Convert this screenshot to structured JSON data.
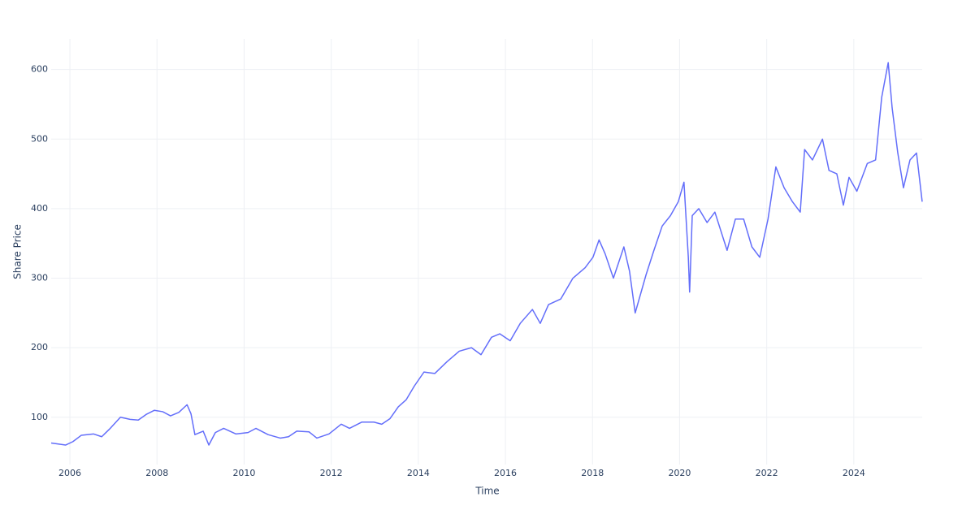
{
  "chart_data": {
    "type": "line",
    "xlabel": "Time",
    "ylabel": "Share Price",
    "xlim": [
      2005.57,
      2025.57
    ],
    "xticks": [
      2006,
      2008,
      2010,
      2012,
      2014,
      2016,
      2018,
      2020,
      2022,
      2024
    ],
    "ylim": [
      32,
      644
    ],
    "yticks": [
      100,
      200,
      300,
      400,
      500,
      600
    ],
    "grid": true,
    "x": [
      2005.57,
      2005.9,
      2006.07,
      2006.26,
      2006.54,
      2006.73,
      2006.91,
      2007.16,
      2007.38,
      2007.57,
      2007.75,
      2007.94,
      2008.13,
      2008.31,
      2008.5,
      2008.69,
      2008.78,
      2008.87,
      2009.06,
      2009.19,
      2009.34,
      2009.53,
      2009.81,
      2010.09,
      2010.27,
      2010.55,
      2010.83,
      2011.02,
      2011.21,
      2011.49,
      2011.67,
      2011.95,
      2012.23,
      2012.42,
      2012.7,
      2012.98,
      2013.16,
      2013.35,
      2013.54,
      2013.72,
      2013.91,
      2014.13,
      2014.38,
      2014.66,
      2014.94,
      2015.22,
      2015.44,
      2015.68,
      2015.87,
      2016.11,
      2016.34,
      2016.62,
      2016.8,
      2016.99,
      2017.27,
      2017.55,
      2017.83,
      2018.01,
      2018.15,
      2018.29,
      2018.48,
      2018.72,
      2018.85,
      2018.98,
      2019.23,
      2019.41,
      2019.6,
      2019.79,
      2019.97,
      2020.1,
      2020.2,
      2020.23,
      2020.29,
      2020.44,
      2020.63,
      2020.81,
      2021.09,
      2021.28,
      2021.47,
      2021.66,
      2021.84,
      2022.03,
      2022.21,
      2022.4,
      2022.59,
      2022.77,
      2022.87,
      2023.05,
      2023.28,
      2023.43,
      2023.61,
      2023.76,
      2023.89,
      2024.07,
      2024.31,
      2024.5,
      2024.64,
      2024.79,
      2024.88,
      2025.01,
      2025.14,
      2025.29,
      2025.44,
      2025.57
    ],
    "series": [
      {
        "color": "#636efa",
        "values": [
          63,
          60,
          65,
          74,
          76,
          72,
          83,
          100,
          97,
          96,
          104,
          110,
          108,
          102,
          107,
          118,
          105,
          75,
          80,
          60,
          78,
          84,
          76,
          78,
          84,
          75,
          70,
          72,
          80,
          79,
          70,
          76,
          90,
          84,
          93,
          93,
          90,
          98,
          115,
          125,
          145,
          165,
          163,
          180,
          195,
          200,
          190,
          215,
          220,
          210,
          235,
          255,
          235,
          262,
          270,
          300,
          315,
          330,
          355,
          335,
          300,
          345,
          310,
          250,
          305,
          340,
          375,
          390,
          410,
          438,
          330,
          280,
          390,
          400,
          380,
          395,
          340,
          385,
          385,
          345,
          330,
          385,
          460,
          430,
          410,
          395,
          485,
          470,
          500,
          455,
          450,
          405,
          445,
          425,
          465,
          470,
          560,
          610,
          545,
          480,
          430,
          470,
          480,
          410
        ]
      }
    ]
  }
}
